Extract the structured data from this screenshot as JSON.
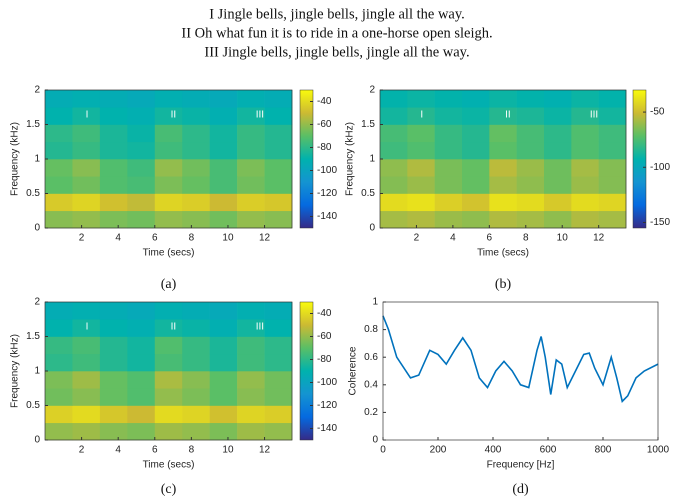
{
  "header": {
    "lines": [
      "I Jingle bells, jingle bells, jingle all the way.",
      "II Oh what fun it is to ride in a one-horse open sleigh.",
      "III Jingle bells, jingle bells, jingle all the way."
    ]
  },
  "chart_data": [
    {
      "type": "heatmap",
      "caption": "(a)",
      "x_label": "Time (secs)",
      "y_label": "Frequency (kHz)",
      "annotations": [
        "I",
        "II",
        "III"
      ],
      "x": [
        0.75,
        2.25,
        3.75,
        5.25,
        6.75,
        8.25,
        9.75,
        11.25,
        12.75
      ],
      "y": [
        0.125,
        0.375,
        0.625,
        0.875,
        1.125,
        1.375,
        1.625,
        1.875
      ],
      "z": [
        [
          -62,
          -60,
          -64,
          -66,
          -60,
          -62,
          -66,
          -60,
          -62
        ],
        [
          -45,
          -42,
          -48,
          -52,
          -42,
          -44,
          -50,
          -44,
          -46
        ],
        [
          -70,
          -66,
          -72,
          -74,
          -64,
          -68,
          -74,
          -66,
          -70
        ],
        [
          -68,
          -62,
          -72,
          -76,
          -60,
          -66,
          -74,
          -64,
          -70
        ],
        [
          -82,
          -78,
          -84,
          -86,
          -76,
          -80,
          -86,
          -78,
          -82
        ],
        [
          -80,
          -76,
          -84,
          -88,
          -74,
          -80,
          -86,
          -78,
          -82
        ],
        [
          -90,
          -86,
          -90,
          -92,
          -86,
          -88,
          -92,
          -86,
          -90
        ],
        [
          -94,
          -92,
          -94,
          -96,
          -92,
          -94,
          -96,
          -92,
          -94
        ]
      ],
      "xlim": [
        0,
        13.5
      ],
      "xticks": [
        2,
        4,
        6,
        8,
        10,
        12
      ],
      "ylim": [
        0,
        2
      ],
      "yticks": [
        0,
        0.5,
        1,
        1.5,
        2
      ],
      "clim": [
        -150,
        -30
      ],
      "cticks": [
        -40,
        -60,
        -80,
        -100,
        -120,
        -140
      ],
      "colormap": [
        "#352a87",
        "#056ae0",
        "#1494d1",
        "#00b2ad",
        "#5abf66",
        "#ccba33",
        "#f9fa0d"
      ]
    },
    {
      "type": "heatmap",
      "caption": "(b)",
      "x_label": "Time (secs)",
      "y_label": "Frequency (kHz)",
      "annotations": [
        "I",
        "II",
        "III"
      ],
      "x": [
        0.75,
        2.25,
        3.75,
        5.25,
        6.75,
        8.25,
        9.75,
        11.25,
        12.75
      ],
      "y": [
        0.125,
        0.375,
        0.625,
        0.875,
        1.125,
        1.375,
        1.625,
        1.875
      ],
      "z": [
        [
          -58,
          -56,
          -60,
          -62,
          -56,
          -58,
          -62,
          -56,
          -58
        ],
        [
          -40,
          -38,
          -44,
          -48,
          -38,
          -40,
          -46,
          -40,
          -42
        ],
        [
          -64,
          -60,
          -66,
          -70,
          -58,
          -62,
          -68,
          -60,
          -64
        ],
        [
          -62,
          -56,
          -66,
          -70,
          -54,
          -60,
          -68,
          -58,
          -64
        ],
        [
          -78,
          -74,
          -80,
          -84,
          -72,
          -76,
          -82,
          -74,
          -78
        ],
        [
          -76,
          -72,
          -80,
          -84,
          -70,
          -76,
          -82,
          -74,
          -78
        ],
        [
          -88,
          -84,
          -88,
          -90,
          -84,
          -86,
          -90,
          -84,
          -88
        ],
        [
          -92,
          -90,
          -92,
          -94,
          -90,
          -92,
          -94,
          -90,
          -92
        ]
      ],
      "xlim": [
        0,
        13.5
      ],
      "xticks": [
        2,
        4,
        6,
        8,
        10,
        12
      ],
      "ylim": [
        0,
        2
      ],
      "yticks": [
        0,
        0.5,
        1,
        1.5,
        2
      ],
      "clim": [
        -155,
        -30
      ],
      "cticks": [
        -50,
        -100,
        -150
      ],
      "colormap": [
        "#352a87",
        "#056ae0",
        "#1494d1",
        "#00b2ad",
        "#5abf66",
        "#ccba33",
        "#f9fa0d"
      ]
    },
    {
      "type": "heatmap",
      "caption": "(c)",
      "x_label": "Time (secs)",
      "y_label": "Frequency (kHz)",
      "annotations": [
        "I",
        "II",
        "III"
      ],
      "x": [
        0.75,
        2.25,
        3.75,
        5.25,
        6.75,
        8.25,
        9.75,
        11.25,
        12.75
      ],
      "y": [
        0.125,
        0.375,
        0.625,
        0.875,
        1.125,
        1.375,
        1.625,
        1.875
      ],
      "z": [
        [
          -60,
          -58,
          -62,
          -64,
          -58,
          -60,
          -64,
          -58,
          -60
        ],
        [
          -43,
          -40,
          -46,
          -50,
          -40,
          -42,
          -48,
          -42,
          -44
        ],
        [
          -66,
          -62,
          -68,
          -72,
          -60,
          -64,
          -70,
          -62,
          -66
        ],
        [
          -64,
          -58,
          -68,
          -72,
          -56,
          -62,
          -70,
          -60,
          -66
        ],
        [
          -80,
          -76,
          -82,
          -86,
          -74,
          -78,
          -84,
          -76,
          -80
        ],
        [
          -78,
          -74,
          -82,
          -86,
          -72,
          -78,
          -84,
          -76,
          -80
        ],
        [
          -90,
          -86,
          -90,
          -92,
          -86,
          -88,
          -92,
          -86,
          -90
        ],
        [
          -94,
          -92,
          -94,
          -96,
          -92,
          -94,
          -96,
          -92,
          -94
        ]
      ],
      "xlim": [
        0,
        13.5
      ],
      "xticks": [
        2,
        4,
        6,
        8,
        10,
        12
      ],
      "ylim": [
        0,
        2
      ],
      "yticks": [
        0,
        0.5,
        1,
        1.5,
        2
      ],
      "clim": [
        -150,
        -30
      ],
      "cticks": [
        -40,
        -60,
        -80,
        -100,
        -120,
        -140
      ],
      "colormap": [
        "#352a87",
        "#056ae0",
        "#1494d1",
        "#00b2ad",
        "#5abf66",
        "#ccba33",
        "#f9fa0d"
      ]
    },
    {
      "type": "line",
      "caption": "(d)",
      "x_label": "Frequency [Hz]",
      "y_label": "Coherence",
      "x": [
        0,
        20,
        50,
        100,
        130,
        170,
        200,
        230,
        260,
        290,
        320,
        350,
        380,
        410,
        440,
        470,
        500,
        530,
        560,
        575,
        590,
        610,
        630,
        650,
        670,
        700,
        730,
        750,
        770,
        800,
        830,
        850,
        870,
        890,
        920,
        950,
        1000
      ],
      "series": [
        {
          "color": "#0072bd",
          "values": [
            0.9,
            0.8,
            0.6,
            0.45,
            0.47,
            0.65,
            0.62,
            0.55,
            0.65,
            0.74,
            0.65,
            0.45,
            0.38,
            0.5,
            0.57,
            0.5,
            0.4,
            0.38,
            0.65,
            0.75,
            0.6,
            0.33,
            0.58,
            0.55,
            0.38,
            0.5,
            0.62,
            0.63,
            0.52,
            0.4,
            0.6,
            0.45,
            0.28,
            0.32,
            0.45,
            0.5,
            0.55
          ]
        }
      ],
      "xlim": [
        0,
        1000
      ],
      "xticks": [
        0,
        200,
        400,
        600,
        800,
        1000
      ],
      "ylim": [
        0,
        1
      ],
      "yticks": [
        0,
        0.2,
        0.4,
        0.6,
        0.8,
        1
      ]
    }
  ]
}
